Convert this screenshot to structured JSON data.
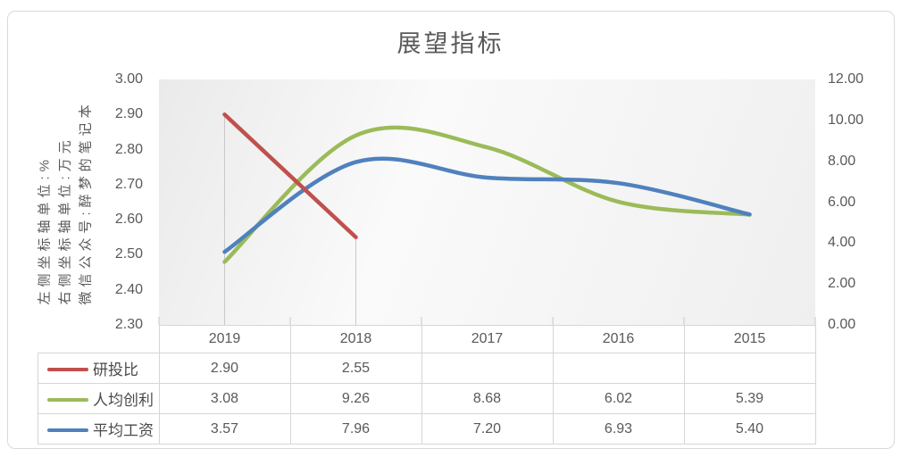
{
  "chart": {
    "title": "展望指标",
    "ylabel_lines": [
      "左侧坐标轴单位:%",
      "右侧坐标轴单位:万元",
      "微信公众号:醉梦的笔记本"
    ]
  },
  "chart_data": {
    "type": "line",
    "title": "展望指标",
    "categories": [
      "2019",
      "2018",
      "2017",
      "2016",
      "2015"
    ],
    "series": [
      {
        "name": "研投比",
        "axis": "left",
        "color": "#C0504D",
        "smooth": false,
        "drop_lines": true,
        "values": [
          2.9,
          2.55,
          null,
          null,
          null
        ]
      },
      {
        "name": "人均创利",
        "axis": "right",
        "color": "#9BBB59",
        "smooth": true,
        "drop_lines": false,
        "values": [
          3.08,
          9.26,
          8.68,
          6.02,
          5.39
        ]
      },
      {
        "name": "平均工资",
        "axis": "right",
        "color": "#4F81BD",
        "smooth": true,
        "drop_lines": false,
        "values": [
          3.57,
          7.96,
          7.2,
          6.93,
          5.4
        ]
      }
    ],
    "left_axis": {
      "min": 2.3,
      "max": 3.0,
      "step": 0.1,
      "ticks": [
        "3.00",
        "2.90",
        "2.80",
        "2.70",
        "2.60",
        "2.50",
        "2.40",
        "2.30"
      ]
    },
    "right_axis": {
      "min": 0,
      "max": 12,
      "step": 2,
      "ticks": [
        "12.00",
        "10.00",
        "8.00",
        "6.00",
        "4.00",
        "2.00",
        "0.00"
      ]
    },
    "grid": false,
    "legend_position": "data-table-left",
    "plot_bg": "light-gray-gradient"
  },
  "table": {
    "header": [
      "2019",
      "2018",
      "2017",
      "2016",
      "2015"
    ],
    "rows": [
      {
        "name": "研投比",
        "color": "#C0504D",
        "values": [
          "2.90",
          "2.55",
          "",
          "",
          ""
        ]
      },
      {
        "name": "人均创利",
        "color": "#9BBB59",
        "values": [
          "3.08",
          "9.26",
          "8.68",
          "6.02",
          "5.39"
        ]
      },
      {
        "name": "平均工资",
        "color": "#4F81BD",
        "values": [
          "3.57",
          "7.96",
          "7.20",
          "6.93",
          "5.40"
        ]
      }
    ]
  },
  "colors": {
    "text": "#595959",
    "cell_border": "#D6D6D6",
    "frame_border": "#D9D9D9",
    "drop_line": "#C9C9C9",
    "axis_tick": "#C9C9C9"
  }
}
